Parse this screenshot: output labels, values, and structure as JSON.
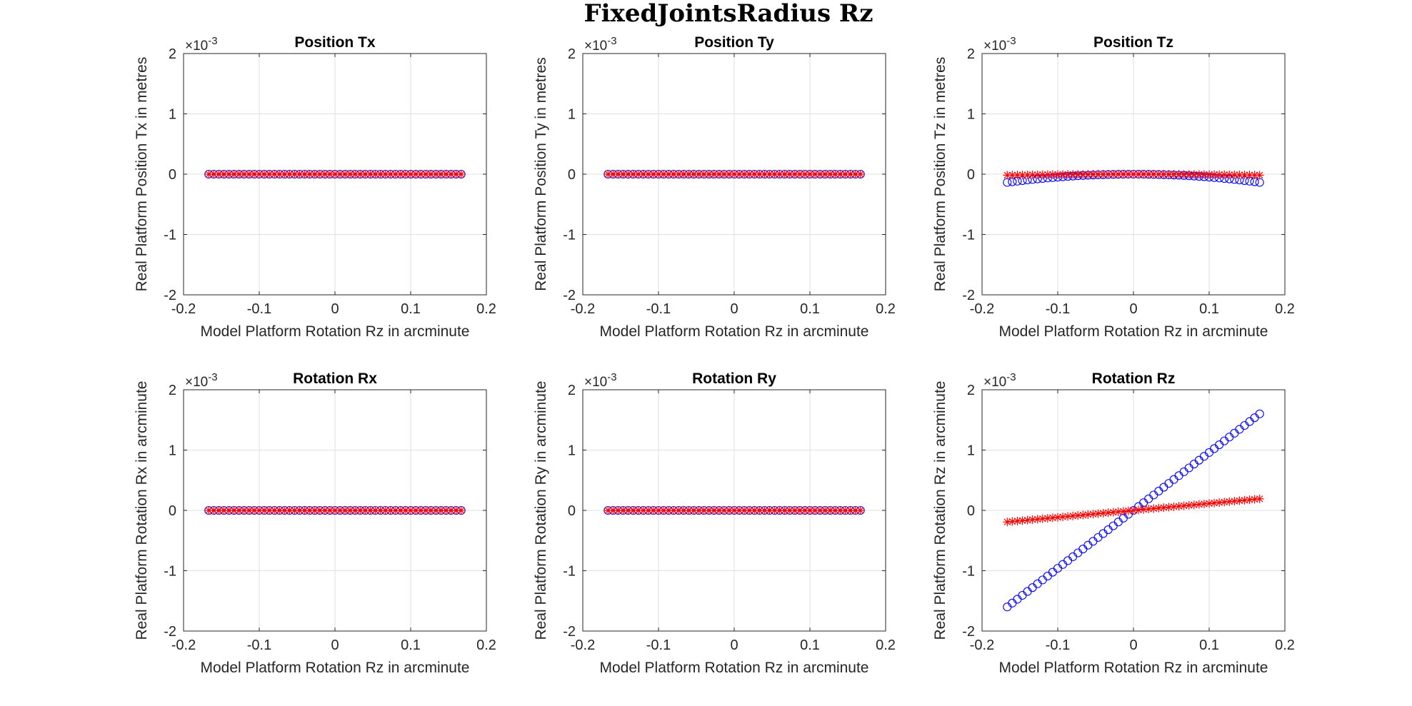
{
  "figure": {
    "title": "FixedJointsRadius Rz"
  },
  "chart_data": [
    {
      "type": "scatter",
      "title": "Position Tx",
      "xlabel": "Model Platform Rotation Rz in arcminute",
      "ylabel": "Real Platform Position Tx in metres",
      "xlim": [
        -0.2,
        0.2
      ],
      "ylim": [
        -2,
        2
      ],
      "xticks": [
        -0.2,
        -0.1,
        0,
        0.1,
        0.2
      ],
      "xtick_labels": [
        "-0.2",
        "-0.1",
        "0",
        "0.1",
        "0.2"
      ],
      "yticks": [
        -2,
        -1,
        0,
        1,
        2
      ],
      "ytick_labels": [
        "-2",
        "-1",
        "0",
        "1",
        "2"
      ],
      "y_exponent": "×10-3",
      "grid": true,
      "x_range": [
        -0.1667,
        0.1667
      ],
      "n_points": 51,
      "series": [
        {
          "marker": "circle",
          "color": "#0000ff",
          "slope": 0,
          "curvature": 0
        },
        {
          "marker": "asterisk",
          "color": "#ff0000",
          "slope": 0,
          "curvature": 0
        }
      ]
    },
    {
      "type": "scatter",
      "title": "Position Ty",
      "xlabel": "Model Platform Rotation Rz in arcminute",
      "ylabel": "Real Platform Position Ty in metres",
      "xlim": [
        -0.2,
        0.2
      ],
      "ylim": [
        -2,
        2
      ],
      "xticks": [
        -0.2,
        -0.1,
        0,
        0.1,
        0.2
      ],
      "xtick_labels": [
        "-0.2",
        "-0.1",
        "0",
        "0.1",
        "0.2"
      ],
      "yticks": [
        -2,
        -1,
        0,
        1,
        2
      ],
      "ytick_labels": [
        "-2",
        "-1",
        "0",
        "1",
        "2"
      ],
      "y_exponent": "×10-3",
      "grid": true,
      "x_range": [
        -0.1667,
        0.1667
      ],
      "n_points": 51,
      "series": [
        {
          "marker": "circle",
          "color": "#0000ff",
          "slope": 0,
          "curvature": 0
        },
        {
          "marker": "asterisk",
          "color": "#ff0000",
          "slope": 0,
          "curvature": 0
        }
      ]
    },
    {
      "type": "scatter",
      "title": "Position Tz",
      "xlabel": "Model Platform Rotation Rz in arcminute",
      "ylabel": "Real Platform Position Tz in metres",
      "xlim": [
        -0.2,
        0.2
      ],
      "ylim": [
        -2,
        2
      ],
      "xticks": [
        -0.2,
        -0.1,
        0,
        0.1,
        0.2
      ],
      "xtick_labels": [
        "-0.2",
        "-0.1",
        "0",
        "0.1",
        "0.2"
      ],
      "yticks": [
        -2,
        -1,
        0,
        1,
        2
      ],
      "ytick_labels": [
        "-2",
        "-1",
        "0",
        "1",
        "2"
      ],
      "y_exponent": "×10-3",
      "grid": true,
      "x_range": [
        -0.1667,
        0.1667
      ],
      "n_points": 51,
      "series": [
        {
          "marker": "circle",
          "color": "#0000ff",
          "slope": 0,
          "curvature": -4.9
        },
        {
          "marker": "asterisk",
          "color": "#ff0000",
          "slope": 0,
          "curvature": -0.6
        }
      ]
    },
    {
      "type": "scatter",
      "title": "Rotation Rx",
      "xlabel": "Model Platform Rotation Rz in arcminute",
      "ylabel": "Real Platform Rotation Rx in arcminute",
      "xlim": [
        -0.2,
        0.2
      ],
      "ylim": [
        -2,
        2
      ],
      "xticks": [
        -0.2,
        -0.1,
        0,
        0.1,
        0.2
      ],
      "xtick_labels": [
        "-0.2",
        "-0.1",
        "0",
        "0.1",
        "0.2"
      ],
      "yticks": [
        -2,
        -1,
        0,
        1,
        2
      ],
      "ytick_labels": [
        "-2",
        "-1",
        "0",
        "1",
        "2"
      ],
      "y_exponent": "×10-3",
      "grid": true,
      "x_range": [
        -0.1667,
        0.1667
      ],
      "n_points": 51,
      "series": [
        {
          "marker": "circle",
          "color": "#0000ff",
          "slope": 0,
          "curvature": 0
        },
        {
          "marker": "asterisk",
          "color": "#ff0000",
          "slope": 0,
          "curvature": 0
        }
      ]
    },
    {
      "type": "scatter",
      "title": "Rotation Ry",
      "xlabel": "Model Platform Rotation Rz in arcminute",
      "ylabel": "Real Platform Rotation Ry in arcminute",
      "xlim": [
        -0.2,
        0.2
      ],
      "ylim": [
        -2,
        2
      ],
      "xticks": [
        -0.2,
        -0.1,
        0,
        0.1,
        0.2
      ],
      "xtick_labels": [
        "-0.2",
        "-0.1",
        "0",
        "0.1",
        "0.2"
      ],
      "yticks": [
        -2,
        -1,
        0,
        1,
        2
      ],
      "ytick_labels": [
        "-2",
        "-1",
        "0",
        "1",
        "2"
      ],
      "y_exponent": "×10-3",
      "grid": true,
      "x_range": [
        -0.1667,
        0.1667
      ],
      "n_points": 51,
      "series": [
        {
          "marker": "circle",
          "color": "#0000ff",
          "slope": 0,
          "curvature": 0
        },
        {
          "marker": "asterisk",
          "color": "#ff0000",
          "slope": 0,
          "curvature": 0
        }
      ]
    },
    {
      "type": "scatter",
      "title": "Rotation Rz",
      "xlabel": "Model Platform Rotation Rz in arcminute",
      "ylabel": "Real Platform Rotation Rz in arcminute",
      "xlim": [
        -0.2,
        0.2
      ],
      "ylim": [
        -2,
        2
      ],
      "xticks": [
        -0.2,
        -0.1,
        0,
        0.1,
        0.2
      ],
      "xtick_labels": [
        "-0.2",
        "-0.1",
        "0",
        "0.1",
        "0.2"
      ],
      "yticks": [
        -2,
        -1,
        0,
        1,
        2
      ],
      "ytick_labels": [
        "-2",
        "-1",
        "0",
        "1",
        "2"
      ],
      "y_exponent": "×10-3",
      "grid": true,
      "x_range": [
        -0.1667,
        0.1667
      ],
      "n_points": 51,
      "series": [
        {
          "marker": "circle",
          "color": "#0000ff",
          "slope": 9.6,
          "curvature": 0
        },
        {
          "marker": "asterisk",
          "color": "#ff0000",
          "slope": 1.15,
          "curvature": 0
        }
      ]
    }
  ]
}
